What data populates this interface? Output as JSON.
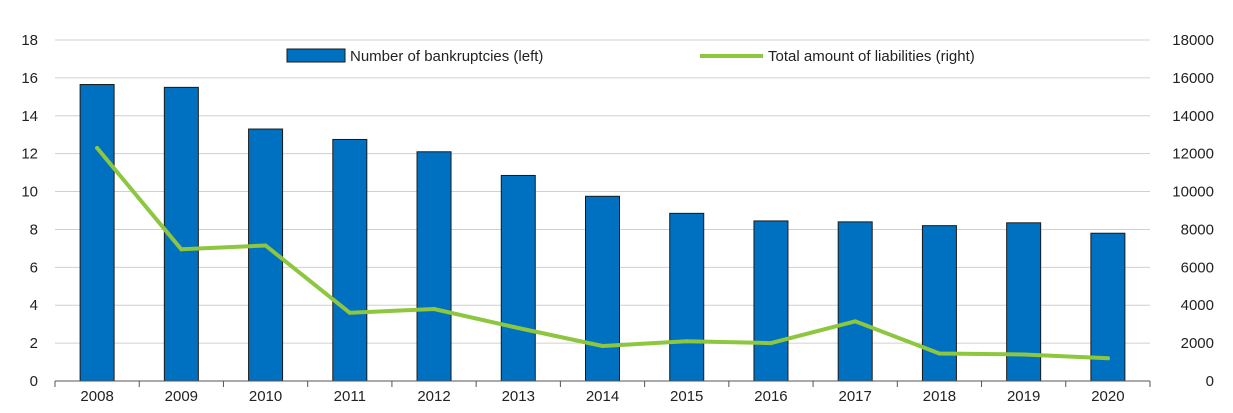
{
  "chart_data": {
    "type": "bar",
    "title": "",
    "categories": [
      "2008",
      "2009",
      "2010",
      "2011",
      "2012",
      "2013",
      "2014",
      "2015",
      "2016",
      "2017",
      "2018",
      "2019",
      "2020"
    ],
    "series": [
      {
        "name": "Number of bankruptcies (left)",
        "type": "bar",
        "axis": "left",
        "color": "#0070C0",
        "values": [
          15.65,
          15.5,
          13.3,
          12.75,
          12.1,
          10.85,
          9.75,
          8.85,
          8.45,
          8.4,
          8.2,
          8.35,
          7.8
        ]
      },
      {
        "name": "Total amount of liabilities (right)",
        "type": "line",
        "axis": "right",
        "color": "#8DC63F",
        "values": [
          12300,
          6950,
          7150,
          3600,
          3800,
          2800,
          1850,
          2100,
          2000,
          3150,
          1450,
          1400,
          1200
        ]
      }
    ],
    "y_left": {
      "min": 0,
      "max": 18,
      "ticks": [
        "0",
        "2",
        "4",
        "6",
        "8",
        "10",
        "12",
        "14",
        "16",
        "18"
      ]
    },
    "y_right": {
      "min": 0,
      "max": 18000,
      "ticks": [
        "0",
        "2000",
        "4000",
        "6000",
        "8000",
        "10000",
        "12000",
        "14000",
        "16000",
        "18000"
      ]
    },
    "grid": true,
    "legend_position": "top-center"
  }
}
